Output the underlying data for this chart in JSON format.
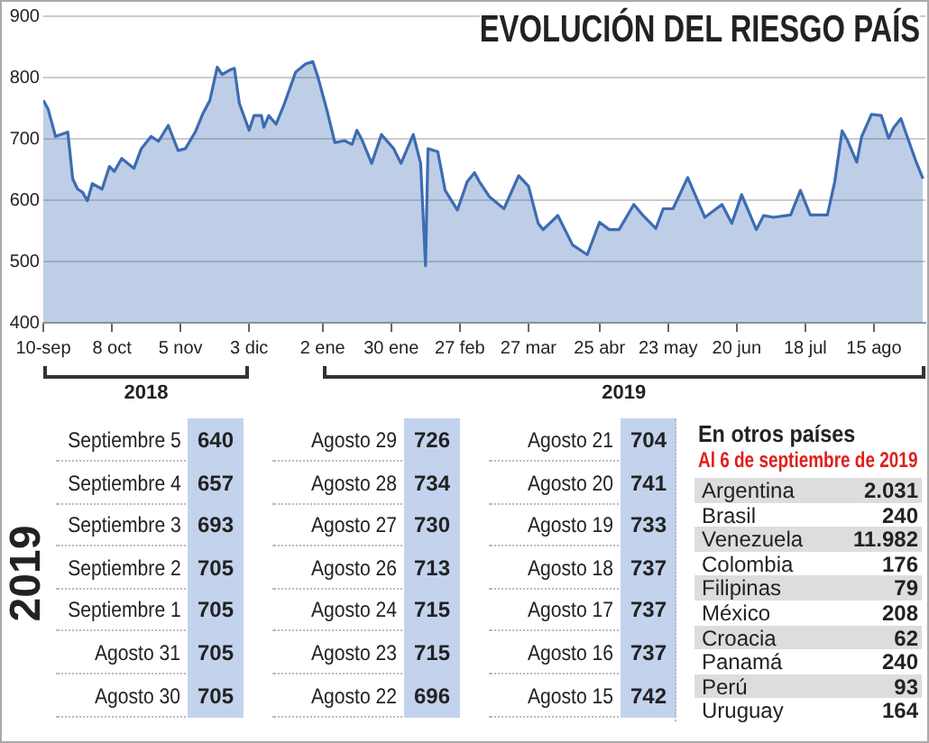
{
  "chart_data": [
    {
      "type": "area",
      "title": "EVOLUCIÓN DEL RIESGO PAÍS",
      "color": "#3d6cb3",
      "marker": "none",
      "grid": "y",
      "x": [
        "2018-09-10",
        "2018-09-12",
        "2018-09-15",
        "2018-09-20",
        "2018-09-22",
        "2018-09-24",
        "2018-09-26",
        "2018-09-28",
        "2018-09-30",
        "2018-10-04",
        "2018-10-07",
        "2018-10-09",
        "2018-10-12",
        "2018-10-17",
        "2018-10-20",
        "2018-10-24",
        "2018-10-27",
        "2018-10-31",
        "2018-11-04",
        "2018-11-07",
        "2018-11-11",
        "2018-11-14",
        "2018-11-17",
        "2018-11-20",
        "2018-11-22",
        "2018-11-25",
        "2018-11-27",
        "2018-11-29",
        "2018-12-03",
        "2018-12-05",
        "2018-12-08",
        "2018-12-09",
        "2018-12-11",
        "2018-12-14",
        "2018-12-17",
        "2018-12-22",
        "2018-12-26",
        "2018-12-29",
        "2018-12-31",
        "2019-01-04",
        "2019-01-07",
        "2019-01-11",
        "2019-01-14",
        "2019-01-16",
        "2019-01-18",
        "2019-01-22",
        "2019-01-26",
        "2019-01-31",
        "2019-02-03",
        "2019-02-08",
        "2019-02-11",
        "2019-02-13",
        "2019-02-14",
        "2019-02-18",
        "2019-02-21",
        "2019-02-26",
        "2019-03-02",
        "2019-03-05",
        "2019-03-07",
        "2019-03-11",
        "2019-03-17",
        "2019-03-23",
        "2019-03-27",
        "2019-03-31",
        "2019-04-02",
        "2019-04-08",
        "2019-04-14",
        "2019-04-20",
        "2019-04-25",
        "2019-04-29",
        "2019-05-03",
        "2019-05-09",
        "2019-05-13",
        "2019-05-18",
        "2019-05-21",
        "2019-05-25",
        "2019-05-31",
        "2019-06-07",
        "2019-06-14",
        "2019-06-18",
        "2019-06-22",
        "2019-06-28",
        "2019-07-01",
        "2019-07-05",
        "2019-07-12",
        "2019-07-16",
        "2019-07-20",
        "2019-07-27",
        "2019-07-30",
        "2019-08-02",
        "2019-08-04",
        "2019-08-08",
        "2019-08-10",
        "2019-08-14",
        "2019-08-18",
        "2019-08-21",
        "2019-08-23",
        "2019-08-26",
        "2019-08-29",
        "2019-09-01",
        "2019-09-04"
      ],
      "values": [
        763,
        748,
        704,
        711,
        635,
        618,
        613,
        599,
        627,
        618,
        655,
        647,
        668,
        652,
        684,
        704,
        696,
        722,
        681,
        684,
        711,
        740,
        763,
        817,
        805,
        812,
        815,
        758,
        714,
        738,
        738,
        719,
        738,
        724,
        753,
        809,
        822,
        826,
        802,
        743,
        694,
        697,
        691,
        714,
        699,
        660,
        707,
        684,
        660,
        707,
        660,
        493,
        684,
        679,
        616,
        584,
        630,
        645,
        630,
        606,
        586,
        640,
        623,
        562,
        552,
        575,
        527,
        511,
        564,
        552,
        552,
        593,
        574,
        554,
        586,
        586,
        637,
        572,
        593,
        562,
        609,
        552,
        575,
        572,
        576,
        616,
        576,
        576,
        630,
        713,
        699,
        662,
        704,
        740,
        738,
        701,
        718,
        733,
        699,
        665,
        635
      ],
      "xlim": [
        "2018-09-10",
        "2019-09-05"
      ],
      "xticks": [
        {
          "value": "2018-09-10",
          "label": "10-sep"
        },
        {
          "value": "2018-10-08",
          "label": "8 oct"
        },
        {
          "value": "2018-11-05",
          "label": "5 nov"
        },
        {
          "value": "2018-12-03",
          "label": "3 dic"
        },
        {
          "value": "2019-01-02",
          "label": "2 ene"
        },
        {
          "value": "2019-01-30",
          "label": "30 ene"
        },
        {
          "value": "2019-02-27",
          "label": "27 feb"
        },
        {
          "value": "2019-03-27",
          "label": "27 mar"
        },
        {
          "value": "2019-04-25",
          "label": "25 abr"
        },
        {
          "value": "2019-05-23",
          "label": "23 may"
        },
        {
          "value": "2019-06-20",
          "label": "20 jun"
        },
        {
          "value": "2019-07-18",
          "label": "18 jul"
        },
        {
          "value": "2019-08-15",
          "label": "15 ago"
        }
      ],
      "ylim": [
        400,
        900
      ],
      "yticks": [
        400,
        500,
        600,
        700,
        800,
        900
      ],
      "annotations": [
        "2018",
        "2019"
      ]
    },
    {
      "type": "other",
      "ylabel": "2019",
      "data_labels": true,
      "categories": [
        "Septiembre 5",
        "Septiembre 4",
        "Septiembre 3",
        "Septiembre 2",
        "Septiembre 1",
        "Agosto 31",
        "Agosto 30",
        "Agosto 29",
        "Agosto 28",
        "Agosto 27",
        "Agosto 26",
        "Agosto 24",
        "Agosto 23",
        "Agosto 22",
        "Agosto 21",
        "Agosto 20",
        "Agosto 19",
        "Agosto 18",
        "Agosto 17",
        "Agosto 16",
        "Agosto 15"
      ],
      "values": [
        640,
        657,
        693,
        705,
        705,
        705,
        705,
        726,
        734,
        730,
        713,
        715,
        715,
        696,
        704,
        741,
        733,
        737,
        737,
        737,
        742
      ]
    },
    {
      "type": "other",
      "title": "En otros países",
      "subtitle": "Al 6 de septiembre de 2019",
      "value_labels": [
        "2.031",
        "240",
        "11.982",
        "176",
        "79",
        "208",
        "62",
        "240",
        "93",
        "164"
      ],
      "categories": [
        "Argentina",
        "Brasil",
        "Venezuela",
        "Colombia",
        "Filipinas",
        "México",
        "Croacia",
        "Panamá",
        "Perú",
        "Uruguay"
      ],
      "values": [
        2031,
        240,
        11982,
        176,
        79,
        208,
        62,
        240,
        93,
        164
      ]
    }
  ]
}
